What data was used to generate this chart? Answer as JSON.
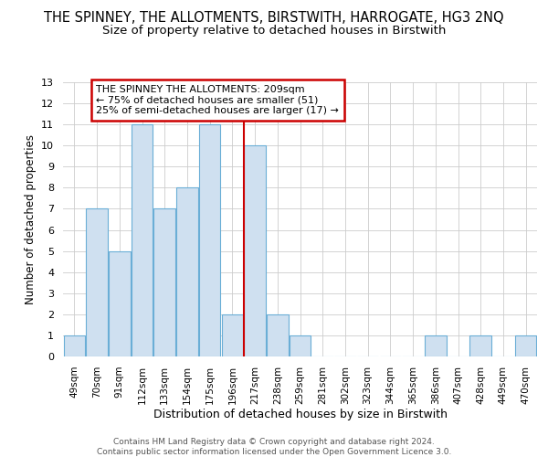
{
  "title": "THE SPINNEY, THE ALLOTMENTS, BIRSTWITH, HARROGATE, HG3 2NQ",
  "subtitle": "Size of property relative to detached houses in Birstwith",
  "xlabel": "Distribution of detached houses by size in Birstwith",
  "ylabel": "Number of detached properties",
  "categories": [
    "49sqm",
    "70sqm",
    "91sqm",
    "112sqm",
    "133sqm",
    "154sqm",
    "175sqm",
    "196sqm",
    "217sqm",
    "238sqm",
    "259sqm",
    "281sqm",
    "302sqm",
    "323sqm",
    "344sqm",
    "365sqm",
    "386sqm",
    "407sqm",
    "428sqm",
    "449sqm",
    "470sqm"
  ],
  "values": [
    1,
    7,
    5,
    11,
    7,
    8,
    11,
    2,
    10,
    2,
    1,
    0,
    0,
    0,
    0,
    0,
    1,
    0,
    1,
    0,
    1
  ],
  "bar_color": "#cfe0f0",
  "bar_edge_color": "#6aaed6",
  "ref_line_x": 7.5,
  "annotation_text": "THE SPINNEY THE ALLOTMENTS: 209sqm\n← 75% of detached houses are smaller (51)\n25% of semi-detached houses are larger (17) →",
  "annotation_box_color": "#ffffff",
  "annotation_box_edge_color": "#cc0000",
  "ylim": [
    0,
    13
  ],
  "yticks": [
    0,
    1,
    2,
    3,
    4,
    5,
    6,
    7,
    8,
    9,
    10,
    11,
    12,
    13
  ],
  "footer1": "Contains HM Land Registry data © Crown copyright and database right 2024.",
  "footer2": "Contains public sector information licensed under the Open Government Licence 3.0.",
  "title_fontsize": 10.5,
  "subtitle_fontsize": 9.5,
  "background_color": "#ffffff",
  "grid_color": "#cccccc"
}
